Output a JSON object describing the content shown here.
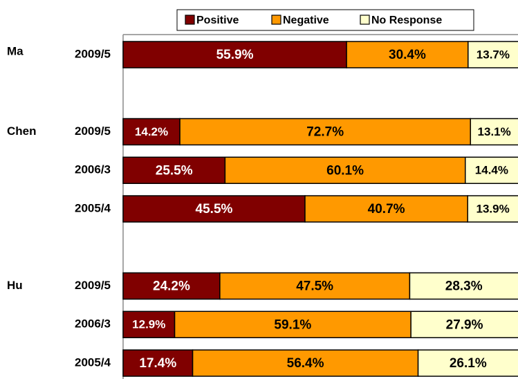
{
  "chart_data": {
    "type": "stacked-barh",
    "categories": [
      "2009/5",
      null,
      "2009/5",
      "2006/3",
      "2005/4",
      null,
      "2009/5",
      "2006/3",
      "2005/4"
    ],
    "group_labels": [
      "Ma",
      null,
      "Chen",
      null,
      null,
      null,
      "Hu",
      null,
      null
    ],
    "series": [
      {
        "name": "Positive",
        "color": "#800000",
        "values": [
          55.9,
          null,
          14.2,
          25.5,
          45.5,
          null,
          24.2,
          12.9,
          17.4
        ],
        "value_labels": [
          "55.9%",
          null,
          "14.2%",
          "25.5%",
          "45.5%",
          null,
          "24.2%",
          "12.9%",
          "17.4%"
        ]
      },
      {
        "name": "Negative",
        "color": "#ff9900",
        "values": [
          30.4,
          null,
          72.7,
          60.1,
          40.7,
          null,
          47.5,
          59.1,
          56.4
        ],
        "value_labels": [
          "30.4%",
          null,
          "72.7%",
          "60.1%",
          "40.7%",
          null,
          "47.5%",
          "59.1%",
          "56.4%"
        ]
      },
      {
        "name": "No Response",
        "color": "#ffffcc",
        "values": [
          13.7,
          null,
          13.1,
          14.4,
          13.9,
          null,
          28.3,
          27.9,
          26.1
        ],
        "value_labels": [
          "13.7%",
          null,
          "13.1%",
          "14.4%",
          "13.9%",
          null,
          "28.3%",
          "27.9%",
          "26.1%"
        ]
      }
    ],
    "xlim": [
      0,
      100
    ],
    "legend": "top"
  }
}
